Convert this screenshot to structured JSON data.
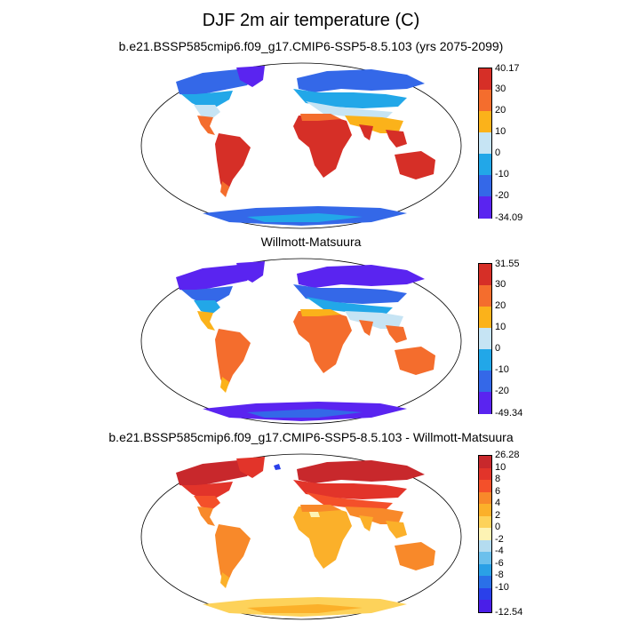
{
  "figure": {
    "title": "DJF 2m air temperature (C)"
  },
  "panels": [
    {
      "title": "b.e21.BSSP585cmip6.f09_g17.CMIP6-SSP5-8.5.103 (yrs 2075-2099)",
      "colorbar": {
        "max_label": "40.17",
        "min_label": "-34.09",
        "labels": [
          "30",
          "20",
          "10",
          "0",
          "-10",
          "-20"
        ],
        "colors": [
          "#d62f27",
          "#f46d2d",
          "#fbb21a",
          "#c6e4f4",
          "#22a7e8",
          "#3468e8",
          "#5a24f0"
        ]
      }
    },
    {
      "title": "Willmott-Matsuura",
      "colorbar": {
        "max_label": "31.55",
        "min_label": "-49.34",
        "labels": [
          "30",
          "20",
          "10",
          "0",
          "-10",
          "-20"
        ],
        "colors": [
          "#d62f27",
          "#f46d2d",
          "#fbb21a",
          "#c6e4f4",
          "#22a7e8",
          "#3468e8",
          "#5a24f0"
        ]
      }
    },
    {
      "title": "b.e21.BSSP585cmip6.f09_g17.CMIP6-SSP5-8.5.103 - Willmott-Matsuura",
      "colorbar": {
        "max_label": "26.28",
        "min_label": "-12.54",
        "labels": [
          "10",
          "8",
          "6",
          "4",
          "2",
          "0",
          "-2",
          "-4",
          "-6",
          "-8",
          "-10"
        ],
        "colors": [
          "#c8282c",
          "#e2342a",
          "#f4502a",
          "#f8892a",
          "#fbb02a",
          "#fdd25a",
          "#fdf3b4",
          "#b4dcf0",
          "#6cc0ec",
          "#2aa0e6",
          "#2a70e8",
          "#2a40ea",
          "#4a1ee8"
        ]
      }
    }
  ]
}
